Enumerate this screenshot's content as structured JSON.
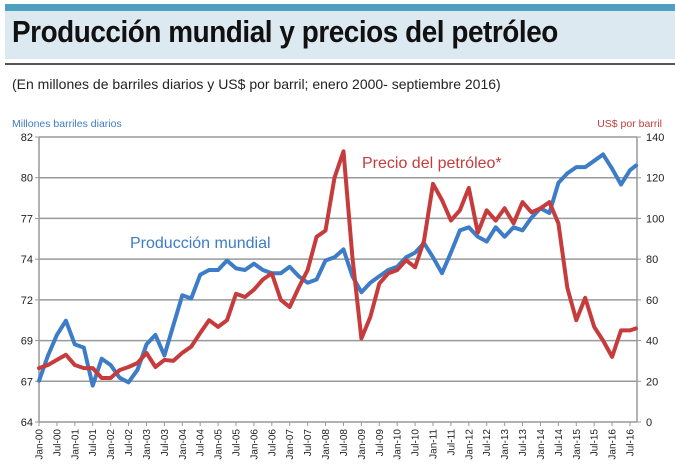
{
  "header": {
    "title": "Producción mundial y precios del petróleo",
    "subtitle": "(En millones de barriles diarios y US$ por barril; enero 2000-  septiembre 2016)"
  },
  "chart_data": {
    "type": "line",
    "title": "Producción mundial y precios del petróleo",
    "ylabel_left": "Millones barriles diarios",
    "ylabel_right": "US$ por barril",
    "ylim_left": [
      64,
      82
    ],
    "ylim_right": [
      0,
      140
    ],
    "left_ticks": [
      "64",
      "67",
      "69",
      "72",
      "74",
      "77",
      "80",
      "82"
    ],
    "right_ticks": [
      "0",
      "20",
      "40",
      "60",
      "80",
      "100",
      "120",
      "140"
    ],
    "x_ticks": [
      "Jan-00",
      "Jul-00",
      "Jan-01",
      "Jul-01",
      "Jan-02",
      "Jul-02",
      "Jan-03",
      "Jul-03",
      "Jan-04",
      "Jul-04",
      "Jan-05",
      "Jul-05",
      "Jan-06",
      "Jul-06",
      "Jan-07",
      "Jul-07",
      "Jan-08",
      "Jul-08",
      "Jan-09",
      "Jul-09",
      "Jan-10",
      "Jul-10",
      "Jan-11",
      "Jul-11",
      "Jan-12",
      "Jul-12",
      "Jan-13",
      "Jul-13",
      "Jan-14",
      "Jul-14",
      "Jan-15",
      "Jul-15",
      "Jan-16",
      "Jul-16"
    ],
    "grid": true,
    "colors": {
      "production": "#3d7cc6",
      "price": "#c63c3c"
    },
    "x": [
      "2000-01",
      "2000-04",
      "2000-07",
      "2000-10",
      "2001-01",
      "2001-04",
      "2001-07",
      "2001-10",
      "2002-01",
      "2002-04",
      "2002-07",
      "2002-10",
      "2003-01",
      "2003-04",
      "2003-07",
      "2003-10",
      "2004-01",
      "2004-04",
      "2004-07",
      "2004-10",
      "2005-01",
      "2005-04",
      "2005-07",
      "2005-10",
      "2006-01",
      "2006-04",
      "2006-07",
      "2006-10",
      "2007-01",
      "2007-04",
      "2007-07",
      "2007-10",
      "2008-01",
      "2008-04",
      "2008-07",
      "2008-10",
      "2009-01",
      "2009-04",
      "2009-07",
      "2009-10",
      "2010-01",
      "2010-04",
      "2010-07",
      "2010-10",
      "2011-01",
      "2011-04",
      "2011-07",
      "2011-10",
      "2012-01",
      "2012-04",
      "2012-07",
      "2012-10",
      "2013-01",
      "2013-04",
      "2013-07",
      "2013-10",
      "2014-01",
      "2014-04",
      "2014-07",
      "2014-10",
      "2015-01",
      "2015-04",
      "2015-07",
      "2015-10",
      "2016-01",
      "2016-04",
      "2016-07",
      "2016-09"
    ],
    "series": [
      {
        "name": "Producción mundial",
        "axis": "left",
        "values": [
          66.6,
          68.2,
          69.5,
          70.4,
          68.9,
          68.7,
          66.3,
          68.0,
          67.6,
          66.8,
          66.5,
          67.3,
          68.9,
          69.5,
          68.2,
          70.1,
          72.0,
          71.8,
          73.3,
          73.6,
          73.6,
          74.2,
          73.7,
          73.6,
          74.0,
          73.6,
          73.4,
          73.4,
          73.8,
          73.2,
          72.8,
          73.0,
          74.2,
          74.4,
          74.9,
          73.2,
          72.2,
          72.8,
          73.2,
          73.6,
          73.8,
          74.4,
          74.7,
          75.3,
          74.4,
          73.4,
          74.7,
          76.1,
          76.3,
          75.7,
          75.4,
          76.3,
          75.7,
          76.3,
          76.1,
          76.9,
          77.5,
          77.2,
          79.1,
          79.7,
          80.1,
          80.1,
          80.5,
          80.9,
          80.0,
          79.0,
          79.9,
          80.2
        ]
      },
      {
        "name": "Precio del petróleo*",
        "axis": "right",
        "values": [
          26.5,
          28,
          30.5,
          33,
          28,
          26.5,
          26.5,
          21.6,
          21.6,
          25.5,
          27,
          29,
          33.9,
          27,
          30.5,
          30,
          34,
          37,
          43.7,
          50,
          46.7,
          50,
          63,
          61.4,
          65,
          70,
          73,
          60,
          56.5,
          66,
          74.6,
          91,
          94,
          120,
          133,
          81,
          41,
          51.6,
          68,
          73,
          74.6,
          79.5,
          76,
          89,
          117,
          109,
          99,
          104,
          115,
          93,
          104,
          99,
          105,
          97.6,
          108,
          103,
          105,
          108,
          97.6,
          66,
          50,
          61,
          46.7,
          40,
          32,
          45,
          45,
          46
        ]
      }
    ]
  }
}
